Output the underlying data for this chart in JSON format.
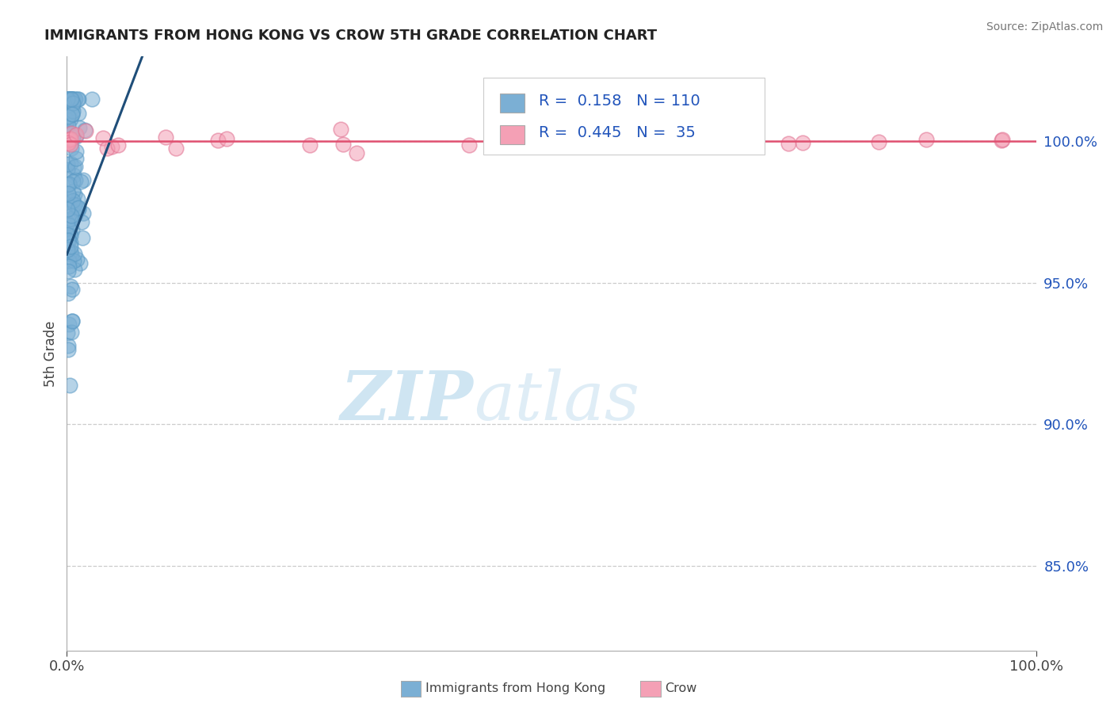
{
  "title": "IMMIGRANTS FROM HONG KONG VS CROW 5TH GRADE CORRELATION CHART",
  "source": "Source: ZipAtlas.com",
  "xlabel_blue": "Immigrants from Hong Kong",
  "xlabel_pink": "Crow",
  "ylabel": "5th Grade",
  "R_blue": 0.158,
  "N_blue": 110,
  "R_pink": 0.445,
  "N_pink": 35,
  "color_blue": "#7BAFD4",
  "color_blue_edge": "#5A9AC5",
  "color_pink": "#F4A0B5",
  "color_pink_edge": "#E07090",
  "line_color_blue": "#1F4E79",
  "line_color_pink": "#E05070",
  "watermark_zip": "ZIP",
  "watermark_atlas": "atlas",
  "xlim": [
    0,
    100
  ],
  "ylim": [
    82,
    103
  ],
  "ytick_vals": [
    85,
    90,
    95,
    100
  ],
  "ytick_labels": [
    "85.0%",
    "90.0%",
    "95.0%",
    "100.0%"
  ],
  "xtick_vals": [
    0,
    100
  ],
  "xtick_labels": [
    "0.0%",
    "100.0%"
  ],
  "legend_R_blue": "R =  0.158",
  "legend_N_blue": "N = 110",
  "legend_R_pink": "R =  0.445",
  "legend_N_pink": "N =  35"
}
